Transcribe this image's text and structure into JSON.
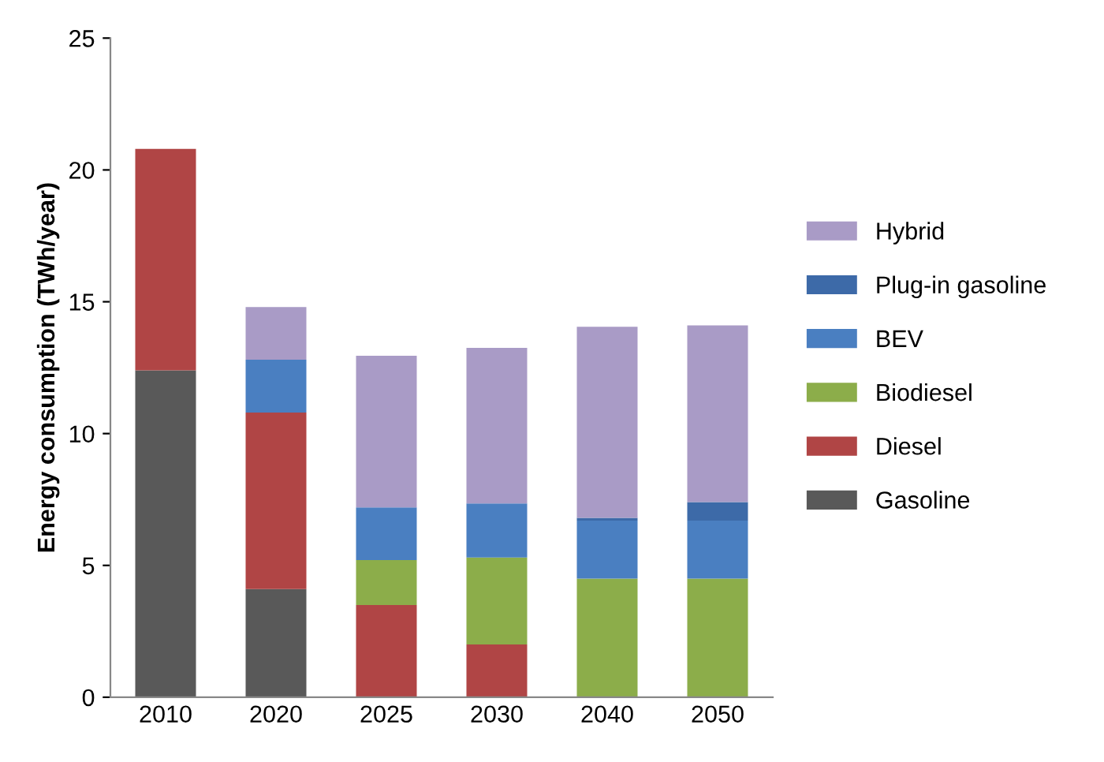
{
  "chart_data": {
    "type": "bar",
    "stacked": true,
    "ylabel": "Energy consumption (TWh/year)",
    "categories": [
      "2010",
      "2020",
      "2025",
      "2030",
      "2040",
      "2050"
    ],
    "series": [
      {
        "name": "Gasoline",
        "color": "#595959",
        "values": [
          12.4,
          4.1,
          0,
          0,
          0,
          0
        ]
      },
      {
        "name": "Diesel",
        "color": "#b04545",
        "values": [
          8.4,
          6.7,
          3.5,
          2.0,
          0,
          0
        ]
      },
      {
        "name": "Biodiesel",
        "color": "#8cad4a",
        "values": [
          0,
          0,
          1.7,
          3.3,
          4.5,
          4.5
        ]
      },
      {
        "name": "BEV",
        "color": "#4a7fc1",
        "values": [
          0,
          2.0,
          2.0,
          2.05,
          2.2,
          2.2
        ]
      },
      {
        "name": "Plug-in gasoline",
        "color": "#3d6aa8",
        "values": [
          0,
          0,
          0,
          0,
          0.1,
          0.7
        ]
      },
      {
        "name": "Hybrid",
        "color": "#a99bc6",
        "values": [
          0,
          2.0,
          5.75,
          5.9,
          7.25,
          6.7
        ]
      }
    ],
    "ylim": [
      0,
      25
    ],
    "yticks": [
      0,
      5,
      10,
      15,
      20,
      25
    ],
    "grid": false,
    "legend": "right"
  }
}
